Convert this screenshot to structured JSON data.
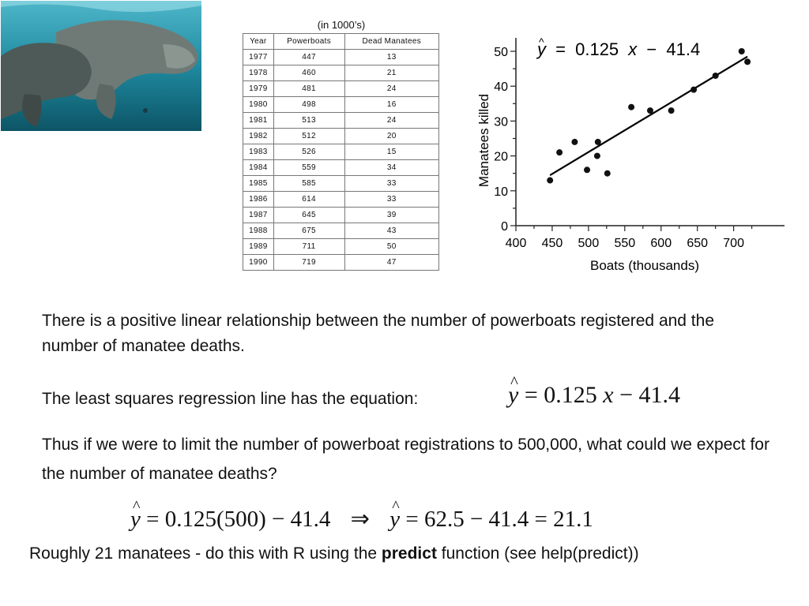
{
  "photo": {
    "description_icon": "manatee-photo"
  },
  "table": {
    "caption": "(in 1000’s)",
    "headers": [
      "Year",
      "Powerboats",
      "Dead Manatees"
    ],
    "rows": [
      [
        "1977",
        "447",
        "13"
      ],
      [
        "1978",
        "460",
        "21"
      ],
      [
        "1979",
        "481",
        "24"
      ],
      [
        "1980",
        "498",
        "16"
      ],
      [
        "1981",
        "513",
        "24"
      ],
      [
        "1982",
        "512",
        "20"
      ],
      [
        "1983",
        "526",
        "15"
      ],
      [
        "1984",
        "559",
        "34"
      ],
      [
        "1985",
        "585",
        "33"
      ],
      [
        "1986",
        "614",
        "33"
      ],
      [
        "1987",
        "645",
        "39"
      ],
      [
        "1988",
        "675",
        "43"
      ],
      [
        "1989",
        "711",
        "50"
      ],
      [
        "1990",
        "719",
        "47"
      ]
    ]
  },
  "chart_data": {
    "type": "scatter",
    "xlabel": "Boats (thousands)",
    "ylabel": "Manatees killed",
    "xlim": [
      400,
      720
    ],
    "ylim": [
      0,
      50
    ],
    "xticks": [
      400,
      450,
      500,
      550,
      600,
      650,
      700
    ],
    "yticks": [
      0,
      10,
      20,
      30,
      40,
      50
    ],
    "points": [
      {
        "x": 447,
        "y": 13
      },
      {
        "x": 460,
        "y": 21
      },
      {
        "x": 481,
        "y": 24
      },
      {
        "x": 498,
        "y": 16
      },
      {
        "x": 513,
        "y": 24
      },
      {
        "x": 512,
        "y": 20
      },
      {
        "x": 526,
        "y": 15
      },
      {
        "x": 559,
        "y": 34
      },
      {
        "x": 585,
        "y": 33
      },
      {
        "x": 614,
        "y": 33
      },
      {
        "x": 645,
        "y": 39
      },
      {
        "x": 675,
        "y": 43
      },
      {
        "x": 711,
        "y": 50
      },
      {
        "x": 719,
        "y": 47
      }
    ],
    "regression": {
      "slope": 0.125,
      "intercept": -41.4,
      "x_range": [
        447,
        719
      ],
      "equation_parts": {
        "y": "y",
        "equals": "=",
        "slope": "0.125",
        "x": "x",
        "minus": "−",
        "intercept": "41.4"
      }
    },
    "grid": false,
    "legend": "none"
  },
  "text": {
    "para1": "There is a positive linear relationship between the number of powerboats registered and the number of manatee deaths.",
    "para2_label": "The least squares regression line has the equation:",
    "para3": "Thus if we were to limit the number of powerboat registrations to 500,000, what could we expect for the number of manatee deaths?",
    "eq1": {
      "y": "y",
      "equals": "=",
      "slope": "0.125",
      "x": "x",
      "minus": "−",
      "intercept": "41.4"
    },
    "calc": {
      "lhs": "y",
      "eq": "=",
      "expr1": "0.125(500) − 41.4",
      "implies": "⇒",
      "lhs2": "y",
      "eq2": "=",
      "expr2": "62.5 − 41.4 = 21.1"
    },
    "final_pre": "Roughly 21 manatees - do this with R using the ",
    "final_bold": "predict",
    "final_post": " function (see help(predict))"
  }
}
